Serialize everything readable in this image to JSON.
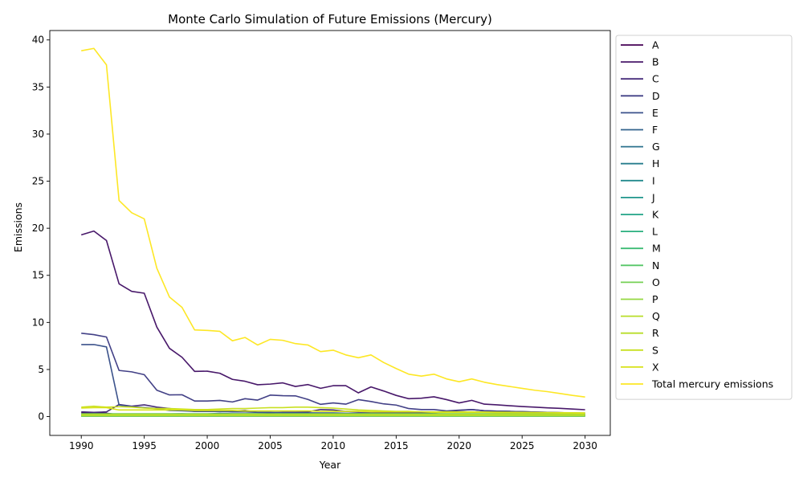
{
  "chart_data": {
    "type": "line",
    "title": "Monte Carlo Simulation of Future Emissions (Mercury)",
    "xlabel": "Year",
    "ylabel": "Emissions",
    "xlim": [
      1987.5,
      2032
    ],
    "ylim": [
      -2,
      41
    ],
    "xticks": [
      1990,
      1995,
      2000,
      2005,
      2010,
      2015,
      2020,
      2025,
      2030
    ],
    "yticks": [
      0,
      5,
      10,
      15,
      20,
      25,
      30,
      35,
      40
    ],
    "grid": false,
    "legend_position": "outside-right",
    "x": [
      1990,
      1991,
      1992,
      1993,
      1994,
      1995,
      1996,
      1997,
      1998,
      1999,
      2000,
      2001,
      2002,
      2003,
      2004,
      2005,
      2006,
      2007,
      2008,
      2009,
      2010,
      2011,
      2012,
      2013,
      2014,
      2015,
      2016,
      2017,
      2018,
      2019,
      2020,
      2021,
      2022,
      2023,
      2024,
      2025,
      2026,
      2027,
      2028,
      2029,
      2030
    ],
    "series": [
      {
        "name": "A",
        "color": "#440154",
        "values": [
          0.4,
          0.4,
          0.35,
          0.2,
          0.15,
          0.15,
          0.15,
          0.15,
          0.15,
          0.15,
          0.15,
          0.15,
          0.15,
          0.15,
          0.15,
          0.15,
          0.15,
          0.15,
          0.15,
          0.15,
          0.15,
          0.15,
          0.15,
          0.15,
          0.15,
          0.15,
          0.15,
          0.15,
          0.15,
          0.15,
          0.15,
          0.15,
          0.15,
          0.15,
          0.15,
          0.15,
          0.15,
          0.15,
          0.15,
          0.15,
          0.15
        ]
      },
      {
        "name": "B",
        "color": "#48186a",
        "values": [
          19.3,
          19.7,
          18.7,
          14.1,
          13.3,
          13.1,
          9.5,
          7.25,
          6.3,
          4.8,
          4.82,
          4.6,
          3.95,
          3.75,
          3.38,
          3.45,
          3.58,
          3.2,
          3.4,
          3.0,
          3.28,
          3.28,
          2.52,
          3.15,
          2.72,
          2.25,
          1.9,
          1.95,
          2.1,
          1.8,
          1.45,
          1.72,
          1.32,
          1.25,
          1.15,
          1.07,
          1.0,
          0.93,
          0.87,
          0.8,
          0.73
        ]
      },
      {
        "name": "C",
        "color": "#472d7b",
        "values": [
          0.5,
          0.45,
          0.5,
          1.28,
          1.1,
          1.25,
          1.0,
          0.85,
          0.7,
          0.55,
          0.55,
          0.55,
          0.6,
          0.65,
          0.45,
          0.4,
          0.45,
          0.45,
          0.5,
          0.75,
          0.7,
          0.55,
          0.5,
          0.45,
          0.4,
          0.4,
          0.4,
          0.4,
          0.4,
          0.55,
          0.65,
          0.75,
          0.62,
          0.58,
          0.55,
          0.52,
          0.48,
          0.45,
          0.42,
          0.38,
          0.35
        ]
      },
      {
        "name": "D",
        "color": "#424086",
        "values": [
          8.85,
          8.7,
          8.45,
          4.9,
          4.75,
          4.45,
          2.8,
          2.3,
          2.32,
          1.65,
          1.65,
          1.72,
          1.55,
          1.9,
          1.75,
          2.28,
          2.22,
          2.2,
          1.82,
          1.3,
          1.45,
          1.32,
          1.8,
          1.6,
          1.35,
          1.22,
          0.85,
          0.75,
          0.75,
          0.6,
          0.68,
          0.75,
          0.62,
          0.58,
          0.55,
          0.52,
          0.48,
          0.45,
          0.42,
          0.38,
          0.35
        ]
      },
      {
        "name": "E",
        "color": "#3b528b",
        "values": [
          7.65,
          7.65,
          7.4,
          1.22,
          1.05,
          0.95,
          0.85,
          0.65,
          0.62,
          0.55,
          0.55,
          0.55,
          0.5,
          0.5,
          0.45,
          0.45,
          0.42,
          0.4,
          0.4,
          0.38,
          0.38,
          0.35,
          0.35,
          0.35,
          0.32,
          0.32,
          0.3,
          0.3,
          0.3,
          0.28,
          0.28,
          0.28,
          0.27,
          0.26,
          0.25,
          0.24,
          0.23,
          0.22,
          0.21,
          0.2,
          0.2
        ]
      },
      {
        "name": "F",
        "color": "#33638d",
        "values": [
          0.15,
          0.15,
          0.15,
          0.15,
          0.15,
          0.2,
          0.22,
          0.28,
          0.3,
          0.25,
          0.28,
          0.35,
          0.3,
          0.3,
          0.3,
          0.28,
          0.25,
          0.25,
          0.25,
          0.22,
          0.22,
          0.2,
          0.2,
          0.2,
          0.2,
          0.2,
          0.18,
          0.18,
          0.18,
          0.18,
          0.18,
          0.18,
          0.17,
          0.17,
          0.16,
          0.16,
          0.15,
          0.15,
          0.15,
          0.14,
          0.14
        ]
      },
      {
        "name": "G",
        "color": "#2c728e",
        "values": [
          0.1,
          0.1,
          0.1,
          0.1,
          0.1,
          0.1,
          0.1,
          0.1,
          0.1,
          0.1,
          0.1,
          0.1,
          0.1,
          0.1,
          0.1,
          0.1,
          0.1,
          0.1,
          0.1,
          0.1,
          0.1,
          0.1,
          0.1,
          0.1,
          0.1,
          0.1,
          0.1,
          0.1,
          0.1,
          0.1,
          0.1,
          0.1,
          0.1,
          0.1,
          0.1,
          0.1,
          0.1,
          0.1,
          0.1,
          0.1,
          0.1
        ]
      },
      {
        "name": "H",
        "color": "#287d8e",
        "values": [
          0.05,
          0.05,
          0.05,
          0.05,
          0.05,
          0.05,
          0.05,
          0.05,
          0.05,
          0.05,
          0.05,
          0.05,
          0.05,
          0.05,
          0.05,
          0.05,
          0.05,
          0.05,
          0.05,
          0.05,
          0.05,
          0.05,
          0.05,
          0.05,
          0.05,
          0.05,
          0.05,
          0.05,
          0.05,
          0.05,
          0.05,
          0.05,
          0.05,
          0.05,
          0.05,
          0.05,
          0.05,
          0.05,
          0.05,
          0.05,
          0.05
        ]
      },
      {
        "name": "I",
        "color": "#238a8d",
        "values": [
          0.08,
          0.08,
          0.08,
          0.08,
          0.08,
          0.08,
          0.08,
          0.08,
          0.08,
          0.08,
          0.08,
          0.08,
          0.08,
          0.08,
          0.08,
          0.08,
          0.08,
          0.08,
          0.08,
          0.08,
          0.08,
          0.08,
          0.08,
          0.08,
          0.08,
          0.08,
          0.08,
          0.08,
          0.08,
          0.08,
          0.08,
          0.08,
          0.08,
          0.08,
          0.08,
          0.08,
          0.08,
          0.08,
          0.08,
          0.08,
          0.08
        ]
      },
      {
        "name": "J",
        "color": "#1f968b",
        "values": [
          0.12,
          0.12,
          0.12,
          0.12,
          0.12,
          0.12,
          0.12,
          0.12,
          0.12,
          0.12,
          0.12,
          0.12,
          0.12,
          0.12,
          0.12,
          0.12,
          0.12,
          0.12,
          0.12,
          0.12,
          0.12,
          0.12,
          0.12,
          0.12,
          0.12,
          0.12,
          0.12,
          0.12,
          0.12,
          0.12,
          0.12,
          0.12,
          0.12,
          0.12,
          0.12,
          0.12,
          0.12,
          0.12,
          0.12,
          0.12,
          0.12
        ]
      },
      {
        "name": "K",
        "color": "#20a386",
        "values": [
          0.06,
          0.06,
          0.06,
          0.06,
          0.06,
          0.06,
          0.06,
          0.06,
          0.06,
          0.06,
          0.06,
          0.06,
          0.06,
          0.06,
          0.06,
          0.06,
          0.06,
          0.06,
          0.06,
          0.06,
          0.06,
          0.06,
          0.06,
          0.06,
          0.06,
          0.06,
          0.06,
          0.06,
          0.06,
          0.06,
          0.06,
          0.06,
          0.06,
          0.06,
          0.06,
          0.06,
          0.06,
          0.06,
          0.06,
          0.06,
          0.06
        ]
      },
      {
        "name": "L",
        "color": "#29af7f",
        "values": [
          0.2,
          0.2,
          0.2,
          0.2,
          0.2,
          0.2,
          0.2,
          0.2,
          0.2,
          0.2,
          0.2,
          0.2,
          0.2,
          0.2,
          0.2,
          0.2,
          0.2,
          0.2,
          0.2,
          0.2,
          0.2,
          0.2,
          0.2,
          0.2,
          0.2,
          0.2,
          0.2,
          0.2,
          0.2,
          0.2,
          0.2,
          0.2,
          0.2,
          0.2,
          0.2,
          0.2,
          0.2,
          0.2,
          0.2,
          0.2,
          0.2
        ]
      },
      {
        "name": "M",
        "color": "#3dbc74",
        "values": [
          0.04,
          0.04,
          0.04,
          0.04,
          0.04,
          0.04,
          0.04,
          0.04,
          0.04,
          0.04,
          0.04,
          0.04,
          0.04,
          0.04,
          0.04,
          0.04,
          0.04,
          0.04,
          0.04,
          0.04,
          0.04,
          0.04,
          0.04,
          0.04,
          0.04,
          0.04,
          0.04,
          0.04,
          0.04,
          0.04,
          0.04,
          0.04,
          0.04,
          0.04,
          0.04,
          0.04,
          0.04,
          0.04,
          0.04,
          0.04,
          0.04
        ]
      },
      {
        "name": "N",
        "color": "#56c667",
        "values": [
          0.3,
          0.3,
          0.3,
          0.3,
          0.3,
          0.3,
          0.3,
          0.3,
          0.3,
          0.3,
          0.3,
          0.3,
          0.3,
          0.3,
          0.3,
          0.3,
          0.3,
          0.3,
          0.3,
          0.3,
          0.3,
          0.3,
          0.3,
          0.3,
          0.3,
          0.3,
          0.3,
          0.3,
          0.3,
          0.3,
          0.3,
          0.3,
          0.3,
          0.3,
          0.3,
          0.3,
          0.3,
          0.3,
          0.3,
          0.3,
          0.3
        ]
      },
      {
        "name": "O",
        "color": "#75d054",
        "values": [
          0.15,
          0.15,
          0.15,
          0.15,
          0.15,
          0.15,
          0.15,
          0.15,
          0.15,
          0.15,
          0.15,
          0.15,
          0.15,
          0.15,
          0.15,
          0.15,
          0.15,
          0.15,
          0.15,
          0.15,
          0.15,
          0.15,
          0.15,
          0.15,
          0.15,
          0.15,
          0.15,
          0.15,
          0.15,
          0.15,
          0.15,
          0.15,
          0.15,
          0.15,
          0.15,
          0.15,
          0.15,
          0.15,
          0.15,
          0.15,
          0.15
        ]
      },
      {
        "name": "P",
        "color": "#95d840",
        "values": [
          0.08,
          0.08,
          0.08,
          0.08,
          0.08,
          0.08,
          0.08,
          0.08,
          0.08,
          0.08,
          0.08,
          0.08,
          0.08,
          0.08,
          0.08,
          0.08,
          0.08,
          0.08,
          0.08,
          0.08,
          0.08,
          0.08,
          0.08,
          0.08,
          0.08,
          0.08,
          0.08,
          0.08,
          0.08,
          0.08,
          0.08,
          0.08,
          0.08,
          0.08,
          0.08,
          0.08,
          0.08,
          0.08,
          0.08,
          0.08,
          0.08
        ]
      },
      {
        "name": "Q",
        "color": "#b8de29",
        "values": [
          0.1,
          0.1,
          0.1,
          0.1,
          0.1,
          0.1,
          0.1,
          0.1,
          0.1,
          0.1,
          0.1,
          0.1,
          0.1,
          0.1,
          0.1,
          0.1,
          0.1,
          0.1,
          0.1,
          0.1,
          0.1,
          0.1,
          0.1,
          0.1,
          0.1,
          0.1,
          0.1,
          0.1,
          0.1,
          0.1,
          0.1,
          0.1,
          0.1,
          0.1,
          0.1,
          0.1,
          0.1,
          0.1,
          0.1,
          0.1,
          0.1
        ]
      },
      {
        "name": "R",
        "color": "#b8de29",
        "values": [
          0.25,
          0.25,
          0.25,
          0.25,
          0.25,
          0.25,
          0.25,
          0.25,
          0.25,
          0.25,
          0.25,
          0.25,
          0.25,
          0.25,
          0.25,
          0.25,
          0.25,
          0.25,
          0.25,
          0.25,
          0.25,
          0.25,
          0.25,
          0.25,
          0.25,
          0.25,
          0.25,
          0.25,
          0.25,
          0.25,
          0.25,
          0.25,
          0.25,
          0.25,
          0.25,
          0.25,
          0.25,
          0.25,
          0.25,
          0.25,
          0.25
        ]
      },
      {
        "name": "S",
        "color": "#c8e020",
        "values": [
          1.0,
          1.1,
          1.0,
          1.05,
          1.0,
          0.9,
          0.85,
          0.85,
          0.8,
          0.75,
          0.75,
          0.8,
          0.85,
          0.85,
          0.9,
          0.95,
          0.95,
          1.0,
          1.0,
          0.95,
          0.9,
          0.8,
          0.7,
          0.65,
          0.6,
          0.55,
          0.55,
          0.5,
          0.5,
          0.5,
          0.5,
          0.5,
          0.48,
          0.47,
          0.46,
          0.45,
          0.44,
          0.43,
          0.42,
          0.41,
          0.4
        ]
      },
      {
        "name": "X",
        "color": "#d8e219",
        "values": [
          0.9,
          0.95,
          0.95,
          0.7,
          0.7,
          0.7,
          0.7,
          0.7,
          0.7,
          0.65,
          0.65,
          0.65,
          0.65,
          0.6,
          0.6,
          0.6,
          0.6,
          0.6,
          0.6,
          0.55,
          0.55,
          0.55,
          0.55,
          0.5,
          0.5,
          0.5,
          0.5,
          0.5,
          0.45,
          0.45,
          0.45,
          0.45,
          0.45,
          0.42,
          0.42,
          0.4,
          0.4,
          0.4,
          0.38,
          0.38,
          0.35
        ]
      },
      {
        "name": "Total mercury emissions",
        "color": "#fde725",
        "values": [
          38.85,
          39.1,
          37.35,
          22.95,
          21.65,
          21.0,
          15.75,
          12.7,
          11.6,
          9.2,
          9.15,
          9.05,
          8.05,
          8.4,
          7.6,
          8.2,
          8.1,
          7.75,
          7.6,
          6.9,
          7.05,
          6.55,
          6.25,
          6.55,
          5.75,
          5.1,
          4.5,
          4.3,
          4.5,
          4.0,
          3.7,
          4.0,
          3.65,
          3.4,
          3.2,
          3.0,
          2.8,
          2.65,
          2.45,
          2.25,
          2.08
        ]
      }
    ]
  }
}
